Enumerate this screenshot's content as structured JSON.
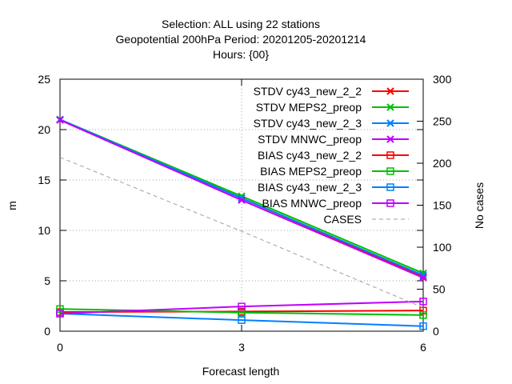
{
  "chart_data": {
    "type": "line",
    "title_lines": [
      "Selection: ALL using    22 stations",
      "Geopotential 200hPa   Period: 20201205-20201214",
      "Hours: {00}"
    ],
    "xlabel": "Forecast length",
    "ylabel": "m",
    "y2label": "No cases",
    "x": [
      0,
      3,
      6
    ],
    "xticks": [
      "0",
      "3",
      "6"
    ],
    "xlim": [
      0,
      6
    ],
    "ylim": [
      0,
      25
    ],
    "yticks": [
      "0",
      "5",
      "10",
      "15",
      "20",
      "25"
    ],
    "y2lim": [
      0,
      300
    ],
    "y2ticks": [
      "0",
      "50",
      "100",
      "150",
      "200",
      "250",
      "300"
    ],
    "grid": true,
    "legend_position": "top-right",
    "series": [
      {
        "name": "STDV cy43_new_2_2",
        "color": "#ff0000",
        "marker": "x",
        "axis": "y",
        "values": [
          21.0,
          13.2,
          5.4
        ]
      },
      {
        "name": "STDV MEPS2_preop",
        "color": "#00c000",
        "marker": "x",
        "axis": "y",
        "values": [
          21.0,
          13.4,
          5.75
        ]
      },
      {
        "name": "STDV cy43_new_2_3",
        "color": "#0080ff",
        "marker": "x",
        "axis": "y",
        "values": [
          21.0,
          13.2,
          5.55
        ]
      },
      {
        "name": "STDV MNWC_preop",
        "color": "#c000ff",
        "marker": "x",
        "axis": "y",
        "values": [
          20.95,
          13.0,
          5.3
        ]
      },
      {
        "name": "BIAS cy43_new_2_2",
        "color": "#ff0000",
        "marker": "square",
        "axis": "y",
        "values": [
          1.9,
          1.95,
          2.05
        ]
      },
      {
        "name": "BIAS MEPS2_preop",
        "color": "#00c000",
        "marker": "square",
        "axis": "y",
        "values": [
          2.2,
          1.85,
          1.6
        ]
      },
      {
        "name": "BIAS cy43_new_2_3",
        "color": "#0080ff",
        "marker": "square",
        "axis": "y",
        "values": [
          1.75,
          1.1,
          0.5
        ]
      },
      {
        "name": "BIAS MNWC_preop",
        "color": "#c000ff",
        "marker": "square",
        "axis": "y",
        "values": [
          1.75,
          2.45,
          2.95
        ]
      },
      {
        "name": "CASES",
        "color": "#a0a0a0",
        "marker": "none",
        "dashed": true,
        "axis": "y2",
        "values": [
          207,
          119,
          28
        ]
      }
    ]
  }
}
